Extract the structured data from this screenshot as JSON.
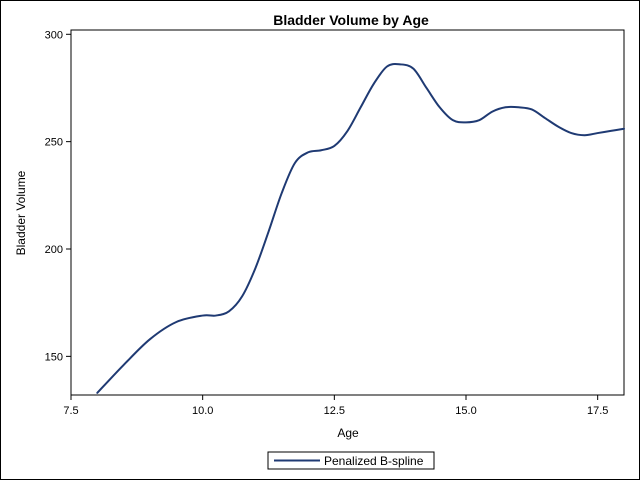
{
  "chart_data": {
    "type": "line",
    "title": "Bladder Volume by Age",
    "xlabel": "Age",
    "ylabel": "Bladder Volume",
    "xlim": [
      7.5,
      18.0
    ],
    "ylim": [
      132,
      302
    ],
    "x_ticks": [
      7.5,
      10.0,
      12.5,
      15.0,
      17.5
    ],
    "x_tick_labels": [
      "7.5",
      "10.0",
      "12.5",
      "15.0",
      "17.5"
    ],
    "y_ticks": [
      150,
      200,
      250,
      300
    ],
    "y_tick_labels": [
      "150",
      "200",
      "250",
      "300"
    ],
    "grid": false,
    "legend_position": "bottom-center",
    "series": [
      {
        "name": "Penalized B-spline",
        "color": "#1f3a73",
        "x": [
          8.0,
          8.5,
          9.0,
          9.5,
          10.0,
          10.25,
          10.5,
          10.75,
          11.0,
          11.25,
          11.5,
          11.75,
          12.0,
          12.25,
          12.5,
          12.75,
          13.0,
          13.25,
          13.5,
          13.75,
          14.0,
          14.25,
          14.5,
          14.75,
          15.0,
          15.25,
          15.5,
          15.75,
          16.0,
          16.25,
          16.5,
          16.75,
          17.0,
          17.25,
          17.5,
          17.75,
          18.0
        ],
        "y": [
          133,
          146,
          158,
          166,
          169,
          169,
          171,
          178,
          191,
          208,
          226,
          240,
          245,
          246,
          248,
          255,
          266,
          277,
          285,
          286,
          284,
          275,
          266,
          260,
          259,
          260,
          264,
          266,
          266,
          265,
          261,
          257,
          254,
          253,
          254,
          255,
          256
        ]
      }
    ]
  }
}
